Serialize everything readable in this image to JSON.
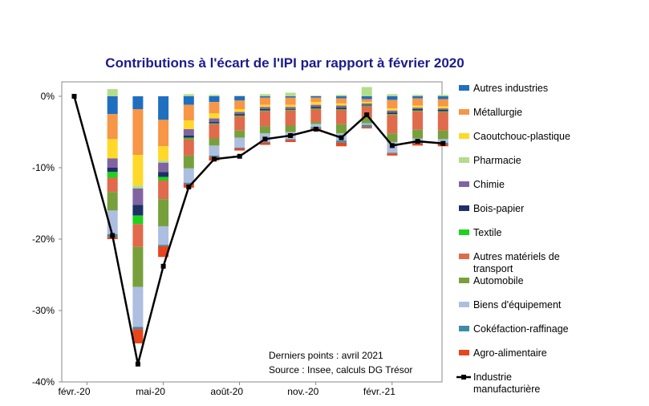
{
  "chart_data": {
    "type": "bar",
    "title": "Contributions à l'écart de l'IPI par rapport à février 2020",
    "x_tick_labels": [
      "févr.-20",
      "mai-20",
      "août-20",
      "nov.-20",
      "févr.-21"
    ],
    "y_tick_labels": [
      "0%",
      "-10%",
      "-20%",
      "-30%",
      "-40%"
    ],
    "ylim": [
      -40,
      0
    ],
    "months": [
      "févr.-20",
      "mars-20",
      "avr.-20",
      "mai-20",
      "juin-20",
      "juil.-20",
      "août-20",
      "sept.-20",
      "oct.-20",
      "nov.-20",
      "déc.-20",
      "janv.-21",
      "févr.-21",
      "mars-21",
      "avr.-21"
    ],
    "series": [
      {
        "name": "Autres industries",
        "color": "#1f6fc0",
        "values": [
          0,
          -2.5,
          -1.8,
          -3.3,
          -1.2,
          -0.8,
          -0.6,
          -0.2,
          -0.2,
          -0.2,
          -0.3,
          -0.4,
          -0.5,
          -0.3,
          -0.4
        ]
      },
      {
        "name": "Métallurgie",
        "color": "#f79646",
        "values": [
          0,
          -3.5,
          -6.4,
          -3.7,
          -2.2,
          -1.6,
          -1.2,
          -1.0,
          -1.0,
          -0.6,
          -0.7,
          -0.4,
          -1.2,
          -1.0,
          -1.0
        ]
      },
      {
        "name": "Caoutchouc-plastique",
        "color": "#ffd929",
        "values": [
          0,
          -2.7,
          -4.3,
          -2.0,
          -1.2,
          -0.7,
          -0.4,
          -0.3,
          -0.3,
          -0.4,
          -0.3,
          -0.2,
          -0.3,
          -0.3,
          -0.3
        ]
      },
      {
        "name": "Pharmacie",
        "color": "#b3dd8a",
        "values": [
          0,
          1.0,
          -0.4,
          -0.3,
          0.3,
          0.2,
          0.1,
          0.3,
          0.5,
          0.1,
          0.2,
          1.3,
          0.3,
          0.2,
          0.2
        ]
      },
      {
        "name": "Chimie",
        "color": "#8064a2",
        "values": [
          0,
          -1.3,
          -2.3,
          -1.3,
          -0.9,
          -0.5,
          -0.3,
          -0.3,
          -0.3,
          -0.3,
          -0.3,
          -0.2,
          -0.3,
          -0.2,
          -0.2
        ]
      },
      {
        "name": "Bois-papier",
        "color": "#1f3066",
        "values": [
          0,
          -0.6,
          -1.5,
          -0.7,
          -0.3,
          -0.2,
          -0.2,
          -0.2,
          -0.1,
          -0.2,
          -0.2,
          -0.1,
          -0.2,
          -0.2,
          -0.2
        ]
      },
      {
        "name": "Textile",
        "color": "#1ed21e",
        "values": [
          0,
          -0.8,
          -1.2,
          -0.5,
          -0.2,
          -0.1,
          -0.1,
          -0.1,
          -0.1,
          -0.1,
          -0.1,
          -0.1,
          -0.1,
          -0.1,
          -0.1
        ]
      },
      {
        "name": "Autres matériels de transport",
        "color": "#e06a4c",
        "values": [
          0,
          -2.0,
          -3.2,
          -2.6,
          -2.3,
          -2.0,
          -2.0,
          -2.1,
          -2.1,
          -1.8,
          -2.0,
          -1.6,
          -2.6,
          -2.6,
          -2.6
        ]
      },
      {
        "name": "Automobile",
        "color": "#77a03c",
        "values": [
          0,
          -2.6,
          -5.6,
          -3.8,
          -1.8,
          -1.0,
          -1.0,
          -1.0,
          -0.9,
          -0.3,
          -1.3,
          -0.8,
          -1.2,
          -1.2,
          -1.2
        ]
      },
      {
        "name": "Biens d'équipement",
        "color": "#aebee0",
        "values": [
          0,
          -3.3,
          -5.6,
          -2.6,
          -2.0,
          -1.4,
          -1.4,
          -1.2,
          -1.0,
          -0.4,
          -1.0,
          -0.2,
          -1.5,
          -0.5,
          -0.5
        ]
      },
      {
        "name": "Cokéfaction-raffinage",
        "color": "#3d8ca5",
        "values": [
          0,
          -0.4,
          -0.3,
          -0.2,
          -0.2,
          -0.2,
          -0.1,
          -0.1,
          -0.1,
          -0.2,
          -0.3,
          -0.3,
          -0.1,
          -0.2,
          -0.2
        ]
      },
      {
        "name": "Agro-alimentaire",
        "color": "#e8451c",
        "values": [
          0,
          -0.3,
          -2.0,
          -1.5,
          -0.5,
          -0.5,
          -0.3,
          -0.3,
          -0.3,
          -0.3,
          -0.5,
          -0.2,
          -0.3,
          -0.3,
          -0.3
        ]
      }
    ],
    "line_series": {
      "name": "Industrie manufacturière",
      "color": "#000000",
      "values": [
        0,
        -19.5,
        -37.5,
        -23.8,
        -12.7,
        -8.8,
        -8.4,
        -6.0,
        -5.5,
        -4.6,
        -5.8,
        -2.6,
        -6.9,
        -6.3,
        -6.6
      ]
    },
    "legend": {
      "placement": "right",
      "entries": [
        "Autres industries",
        "Métallurgie",
        "Caoutchouc-plastique",
        "Pharmacie",
        "Chimie",
        "Bois-papier",
        "Textile",
        "Autres matériels de transport",
        "Automobile",
        "Biens d'équipement",
        "Cokéfaction-raffinage",
        "Agro-alimentaire",
        "Industrie manufacturière"
      ]
    },
    "annotations": [
      "Derniers points : avril 2021",
      "Source : Insee, calculs DG Trésor"
    ]
  }
}
